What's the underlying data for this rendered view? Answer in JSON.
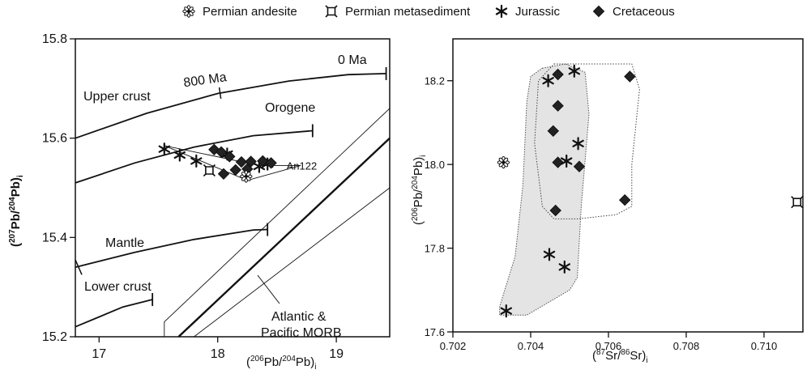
{
  "legend": [
    {
      "label": "Permian andesite",
      "marker": "flower"
    },
    {
      "label": "Permian metasediment",
      "marker": "quad"
    },
    {
      "label": "Jurassic",
      "marker": "star"
    },
    {
      "label": "Cretaceous",
      "marker": "diamond"
    }
  ],
  "chart_data": [
    {
      "type": "scatter",
      "title": "",
      "xlabel_parts": [
        "(",
        "206",
        "Pb/",
        "204",
        "Pb)",
        "i"
      ],
      "ylabel_parts": [
        "(",
        "207",
        "Pb/",
        "204",
        "Pb)",
        "i"
      ],
      "xlim": [
        16.8,
        19.45
      ],
      "ylim": [
        15.2,
        15.8
      ],
      "xticks": [
        17,
        18,
        19
      ],
      "yticks": [
        15.2,
        15.4,
        15.6,
        15.8
      ],
      "xtick_labels": [
        "17",
        "18",
        "19"
      ],
      "ytick_labels": [
        "15.2",
        "15.4",
        "15.6",
        "15.8"
      ],
      "curves": [
        {
          "label": "Upper crust",
          "points": [
            [
              16.8,
              15.6
            ],
            [
              17.4,
              15.65
            ],
            [
              18.0,
              15.69
            ],
            [
              18.6,
              15.715
            ],
            [
              19.1,
              15.728
            ],
            [
              19.42,
              15.73
            ]
          ],
          "end_tick": [
            19.42,
            15.73
          ]
        },
        {
          "label": "Orogene",
          "points": [
            [
              16.8,
              15.51
            ],
            [
              17.3,
              15.55
            ],
            [
              17.8,
              15.582
            ],
            [
              18.3,
              15.605
            ],
            [
              18.8,
              15.615
            ]
          ],
          "end_tick": [
            18.8,
            15.615
          ]
        },
        {
          "label": "Mantle",
          "points": [
            [
              16.8,
              15.34
            ],
            [
              17.3,
              15.37
            ],
            [
              17.8,
              15.396
            ],
            [
              18.3,
              15.415
            ],
            [
              18.42,
              15.416
            ]
          ],
          "end_tick": [
            18.42,
            15.416
          ]
        },
        {
          "label": "Lower crust",
          "points": [
            [
              16.8,
              15.22
            ],
            [
              17.0,
              15.24
            ],
            [
              17.2,
              15.26
            ],
            [
              17.45,
              15.275
            ]
          ],
          "end_tick": [
            17.45,
            15.275
          ]
        }
      ],
      "age_labels": [
        {
          "text": "800 Ma",
          "curve": "Upper crust",
          "x": 18.02
        },
        {
          "text": "0 Ma",
          "curve": "Upper crust",
          "x": 19.42
        }
      ],
      "morb_label": [
        "Atlantic &",
        "Pacific MORB"
      ],
      "morb_center": [
        [
          17.67,
          15.2
        ],
        [
          19.45,
          15.6
        ]
      ],
      "morb_envelope": [
        [
          17.55,
          15.2
        ],
        [
          17.55,
          15.23
        ],
        [
          19.45,
          15.66
        ],
        [
          19.45,
          15.5
        ],
        [
          17.8,
          15.2
        ]
      ],
      "trend_envelope": [
        [
          17.55,
          15.585
        ],
        [
          18.35,
          15.545
        ],
        [
          18.7,
          15.545
        ],
        [
          18.25,
          15.515
        ]
      ],
      "series": [
        {
          "name": "Jurassic",
          "marker": "star",
          "points": [
            [
              17.55,
              15.578
            ],
            [
              17.68,
              15.566
            ],
            [
              17.82,
              15.554
            ],
            [
              18.08,
              15.568
            ],
            [
              18.35,
              15.543
            ],
            [
              18.42,
              15.548
            ]
          ]
        },
        {
          "name": "Cretaceous",
          "marker": "diamond",
          "points": [
            [
              17.97,
              15.577
            ],
            [
              18.03,
              15.572
            ],
            [
              18.1,
              15.563
            ],
            [
              18.2,
              15.552
            ],
            [
              18.28,
              15.553
            ],
            [
              18.38,
              15.554
            ],
            [
              18.45,
              15.55
            ],
            [
              18.05,
              15.528
            ],
            [
              18.15,
              15.536
            ],
            [
              18.25,
              15.538
            ]
          ]
        },
        {
          "name": "Permian metasediment",
          "marker": "quad",
          "points": [
            [
              17.93,
              15.535
            ]
          ]
        },
        {
          "name": "Permian andesite",
          "marker": "flower",
          "points": [
            [
              18.24,
              15.523
            ]
          ]
        }
      ],
      "point_labels": [
        {
          "text": "An122",
          "x": 18.58,
          "y": 15.543
        }
      ]
    },
    {
      "type": "scatter",
      "title": "",
      "xlabel_parts": [
        "(",
        "87",
        "Sr/",
        "86",
        "Sr)",
        "i"
      ],
      "ylabel_parts": [
        "(",
        "206",
        "Pb/",
        "204",
        "Pb)",
        "i"
      ],
      "xlim": [
        0.702,
        0.711
      ],
      "ylim": [
        17.6,
        18.3
      ],
      "xticks": [
        0.702,
        0.704,
        0.706,
        0.708,
        0.71
      ],
      "yticks": [
        17.6,
        17.8,
        18.0,
        18.2
      ],
      "xtick_labels": [
        "0.702",
        "0.704",
        "0.706",
        "0.708",
        "0.710"
      ],
      "ytick_labels": [
        "17.6",
        "17.8",
        "18.0",
        "18.2"
      ],
      "envelopes": [
        {
          "style": "grey",
          "points": [
            [
              0.7043,
              18.23
            ],
            [
              0.7049,
              18.24
            ],
            [
              0.7054,
              18.22
            ],
            [
              0.7055,
              18.12
            ],
            [
              0.7053,
              17.9
            ],
            [
              0.7052,
              17.73
            ],
            [
              0.705,
              17.7
            ],
            [
              0.7039,
              17.64
            ],
            [
              0.7032,
              17.64
            ],
            [
              0.7032,
              17.66
            ],
            [
              0.7036,
              17.78
            ],
            [
              0.7038,
              17.95
            ],
            [
              0.7039,
              18.15
            ],
            [
              0.704,
              18.21
            ]
          ]
        },
        {
          "style": "dotted",
          "points": [
            [
              0.7046,
              18.24
            ],
            [
              0.7066,
              18.24
            ],
            [
              0.7068,
              18.18
            ],
            [
              0.7066,
              18.0
            ],
            [
              0.7066,
              17.9
            ],
            [
              0.7062,
              17.88
            ],
            [
              0.7052,
              17.87
            ],
            [
              0.7046,
              17.87
            ],
            [
              0.7043,
              17.9
            ],
            [
              0.7041,
              18.05
            ],
            [
              0.7042,
              18.2
            ]
          ]
        }
      ],
      "series": [
        {
          "name": "Cretaceous",
          "marker": "diamond",
          "points": [
            [
              0.7047,
              18.215
            ],
            [
              0.70655,
              18.21
            ],
            [
              0.7047,
              18.14
            ],
            [
              0.70458,
              18.08
            ],
            [
              0.7047,
              18.005
            ],
            [
              0.70525,
              17.995
            ],
            [
              0.70464,
              17.89
            ],
            [
              0.70642,
              17.915
            ]
          ]
        },
        {
          "name": "Jurassic",
          "marker": "star",
          "points": [
            [
              0.70445,
              18.2
            ],
            [
              0.70512,
              18.223
            ],
            [
              0.70492,
              18.008
            ],
            [
              0.70522,
              18.05
            ],
            [
              0.70448,
              17.785
            ],
            [
              0.70487,
              17.755
            ],
            [
              0.70337,
              17.65
            ]
          ]
        },
        {
          "name": "Permian andesite",
          "marker": "flower",
          "points": [
            [
              0.7033,
              18.005
            ]
          ]
        },
        {
          "name": "Permian metasediment",
          "marker": "quad",
          "points": [
            [
              0.71085,
              17.91
            ]
          ]
        }
      ]
    }
  ]
}
